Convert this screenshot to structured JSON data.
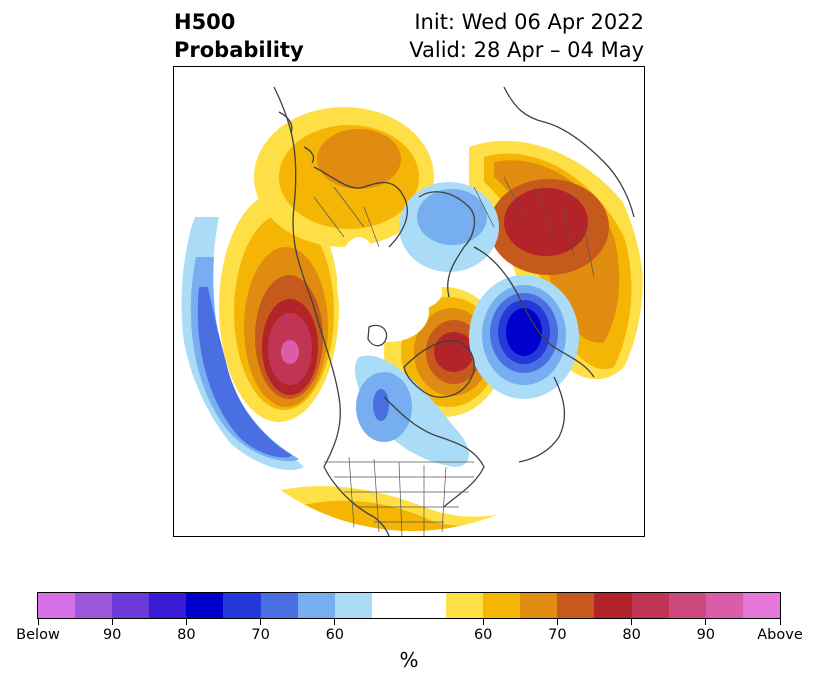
{
  "title": {
    "left_line1": "H500",
    "left_line2": "Probability",
    "right_line1": "Init: Wed 06 Apr 2022",
    "right_line2": "Valid: 28 Apr – 04 May"
  },
  "map": {
    "projection": "north-polar-stereographic",
    "icon": "geopotential-height-probability-map"
  },
  "colorbar": {
    "units": "%",
    "colors": [
      "#d670e6",
      "#9e58de",
      "#6b3bd9",
      "#3a1bd6",
      "#0000cc",
      "#2439d9",
      "#4a6fe3",
      "#76aef0",
      "#aadcf7",
      "#ffffff",
      "#fee046",
      "#f4b505",
      "#e08c10",
      "#c55a1c",
      "#b2232a",
      "#c03553",
      "#cc4a7d",
      "#db5da9",
      "#e577db"
    ],
    "tick_labels": [
      "Below",
      "90",
      "80",
      "70",
      "60",
      "60",
      "70",
      "80",
      "90",
      "Above"
    ]
  }
}
